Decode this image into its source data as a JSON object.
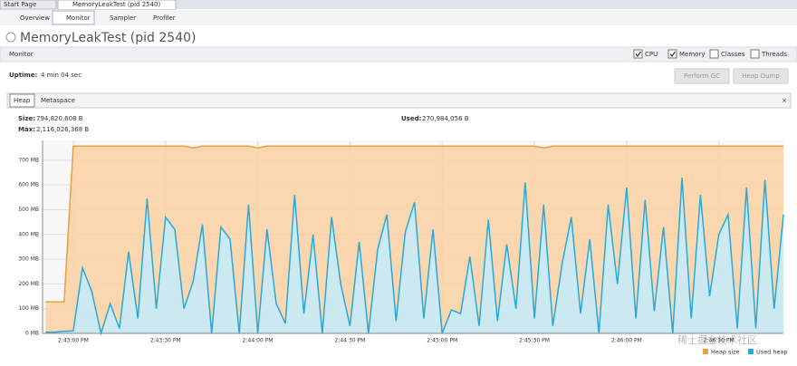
{
  "tabs": [
    "Start Page",
    "MemoryLeakTest (pid 2540)"
  ],
  "subtabs": [
    "Overview",
    "Monitor",
    "Sampler",
    "Profiler"
  ],
  "app_title": "MemoryLeakTest (pid 2540)",
  "section": "Monitor",
  "checkboxes": [
    {
      "label": "CPU",
      "checked": true
    },
    {
      "label": "Memory",
      "checked": true
    },
    {
      "label": "Classes",
      "checked": false
    },
    {
      "label": "Threads",
      "checked": false
    }
  ],
  "uptime": {
    "label": "Uptime:",
    "value": "4 min 04 sec"
  },
  "buttons": [
    "Perform GC",
    "Heap Dump"
  ],
  "memory_tabs": [
    "Heap",
    "Metaspace"
  ],
  "stats": {
    "size_label": "Size:",
    "size": "794,820,608 B",
    "max_label": "Max:",
    "max": "2,116,026,368 B",
    "used_label": "Used:",
    "used": "270,984,056 B"
  },
  "watermark": "稀土掘金技术社区",
  "chart_data": {
    "type": "area",
    "x": [
      "2:42:51 PM",
      "2:42:54 PM",
      "2:42:57 PM",
      "2:43:00 PM",
      "2:43:03 PM",
      "2:43:06 PM",
      "2:43:09 PM",
      "2:43:12 PM",
      "2:43:15 PM",
      "2:43:18 PM",
      "2:43:21 PM",
      "2:43:24 PM",
      "2:43:27 PM",
      "2:43:30 PM",
      "2:43:33 PM",
      "2:43:36 PM",
      "2:43:39 PM",
      "2:43:42 PM",
      "2:43:45 PM",
      "2:43:48 PM",
      "2:43:51 PM",
      "2:43:54 PM",
      "2:43:57 PM",
      "2:44:00 PM",
      "2:44:03 PM",
      "2:44:06 PM",
      "2:44:09 PM",
      "2:44:12 PM",
      "2:44:15 PM",
      "2:44:18 PM",
      "2:44:21 PM",
      "2:44:24 PM",
      "2:44:27 PM",
      "2:44:30 PM",
      "2:44:33 PM",
      "2:44:36 PM",
      "2:44:39 PM",
      "2:44:42 PM",
      "2:44:45 PM",
      "2:44:48 PM",
      "2:44:51 PM",
      "2:44:54 PM",
      "2:44:57 PM",
      "2:45:00 PM",
      "2:45:03 PM",
      "2:45:06 PM",
      "2:45:09 PM",
      "2:45:12 PM",
      "2:45:15 PM",
      "2:45:18 PM",
      "2:45:21 PM",
      "2:45:24 PM",
      "2:45:27 PM",
      "2:45:30 PM",
      "2:45:33 PM",
      "2:45:36 PM",
      "2:45:39 PM",
      "2:45:42 PM",
      "2:45:45 PM",
      "2:45:48 PM",
      "2:45:51 PM",
      "2:45:54 PM",
      "2:45:57 PM",
      "2:46:00 PM",
      "2:46:03 PM",
      "2:46:06 PM",
      "2:46:09 PM",
      "2:46:12 PM",
      "2:46:15 PM",
      "2:46:18 PM",
      "2:46:21 PM",
      "2:46:24 PM",
      "2:46:27 PM",
      "2:46:30 PM",
      "2:46:33 PM",
      "2:46:36 PM",
      "2:46:39 PM",
      "2:46:42 PM",
      "2:46:45 PM",
      "2:46:48 PM",
      "2:46:51 PM"
    ],
    "series": [
      {
        "name": "Heap size",
        "color": "#e8a040",
        "fill": "#f9d3a6",
        "values": [
          127,
          127,
          127,
          757,
          757,
          757,
          757,
          757,
          757,
          757,
          757,
          757,
          757,
          757,
          757,
          757,
          750,
          757,
          757,
          757,
          757,
          757,
          757,
          750,
          757,
          757,
          757,
          757,
          757,
          757,
          757,
          757,
          757,
          757,
          757,
          757,
          757,
          757,
          757,
          757,
          757,
          757,
          757,
          757,
          757,
          757,
          757,
          757,
          757,
          757,
          757,
          757,
          757,
          757,
          750,
          757,
          757,
          757,
          757,
          757,
          757,
          757,
          757,
          757,
          757,
          757,
          757,
          757,
          757,
          757,
          757,
          757,
          757,
          757,
          757,
          757,
          757,
          757,
          757,
          757,
          757
        ]
      },
      {
        "name": "Used heap",
        "color": "#2aa8d8",
        "fill": "#c6ebf8",
        "values": [
          5,
          5,
          8,
          10,
          265,
          170,
          0,
          120,
          20,
          330,
          60,
          545,
          100,
          470,
          420,
          100,
          210,
          440,
          0,
          430,
          380,
          0,
          520,
          0,
          420,
          120,
          40,
          560,
          80,
          400,
          0,
          470,
          200,
          30,
          370,
          0,
          340,
          480,
          50,
          410,
          530,
          60,
          420,
          0,
          95,
          80,
          310,
          30,
          460,
          50,
          360,
          100,
          610,
          60,
          520,
          30,
          280,
          470,
          80,
          380,
          0,
          520,
          200,
          590,
          60,
          540,
          90,
          430,
          0,
          630,
          60,
          560,
          150,
          400,
          480,
          20,
          590,
          20,
          620,
          100,
          480
        ]
      }
    ],
    "xlim": [
      "2:42:50 PM",
      "2:46:51 PM"
    ],
    "xticks": [
      "2:43:00 PM",
      "2:43:30 PM",
      "2:44:00 PM",
      "2:44:30 PM",
      "2:45:00 PM",
      "2:45:30 PM",
      "2:46:00 PM",
      "2:46:30 PM"
    ],
    "ylim": [
      0,
      780
    ],
    "yticks": [
      {
        "value": 0,
        "label": "0 MB"
      },
      {
        "value": 100,
        "label": "100 MB"
      },
      {
        "value": 200,
        "label": "200 MB"
      },
      {
        "value": 300,
        "label": "300 MB"
      },
      {
        "value": 400,
        "label": "400 MB"
      },
      {
        "value": 500,
        "label": "500 MB"
      },
      {
        "value": 600,
        "label": "600 MB"
      },
      {
        "value": 700,
        "label": "700 MB"
      }
    ],
    "grid": true
  }
}
